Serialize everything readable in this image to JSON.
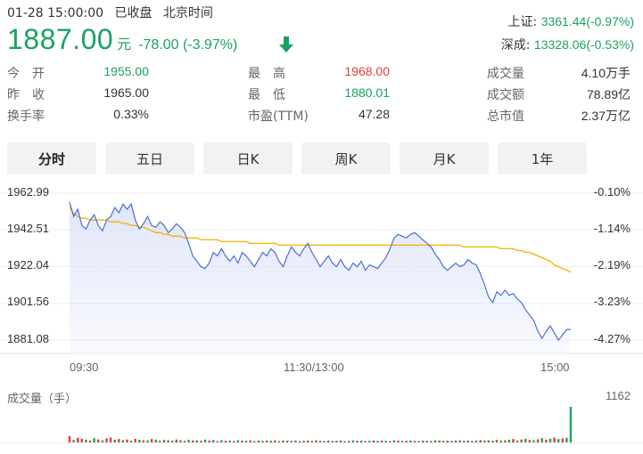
{
  "status": {
    "datetime": "01-28 15:00:00",
    "state": "已收盘",
    "timezone": "北京时间"
  },
  "price": {
    "current": "1887.00",
    "unit": "元",
    "change": "-78.00 (-3.97%)",
    "trend_icon": "down-arrow-icon",
    "color": "#1aa260"
  },
  "indices": [
    {
      "label": "上证:",
      "value": "3361.44(-0.97%)"
    },
    {
      "label": "深成:",
      "value": "13328.06(-0.53%)"
    }
  ],
  "quotes": {
    "open": {
      "label": "今　开",
      "value": "1955.00"
    },
    "prev_close": {
      "label": "昨　收",
      "value": "1965.00"
    },
    "turnover_rate": {
      "label": "换手率",
      "value": "0.33%"
    },
    "high": {
      "label": "最　高",
      "value": "1968.00"
    },
    "low": {
      "label": "最　低",
      "value": "1880.01"
    },
    "pe_ttm": {
      "label": "市盈(TTM)",
      "value": "47.28"
    },
    "volume": {
      "label": "成交量",
      "value": "4.10万手"
    },
    "amount": {
      "label": "成交额",
      "value": "78.89亿"
    },
    "market_cap": {
      "label": "总市值",
      "value": "2.37万亿"
    }
  },
  "tabs": [
    {
      "label": "分时",
      "active": true
    },
    {
      "label": "五日",
      "active": false
    },
    {
      "label": "日K",
      "active": false
    },
    {
      "label": "周K",
      "active": false
    },
    {
      "label": "月K",
      "active": false
    },
    {
      "label": "1年",
      "active": false
    }
  ],
  "chart_data": {
    "type": "line",
    "y_left_ticks": [
      "1962.99",
      "1942.51",
      "1922.04",
      "1901.56",
      "1881.08"
    ],
    "y_right_ticks": [
      "-0.10%",
      "-1.14%",
      "-2.19%",
      "-3.23%",
      "-4.27%"
    ],
    "x_ticks": [
      "09:30",
      "11:30/13:00",
      "15:00"
    ],
    "ylim": [
      1881.08,
      1962.99
    ],
    "colors": {
      "price": "#4a6fd8",
      "avg": "#f0b400",
      "fill": "#dfe4f8",
      "up": "#e33c3c",
      "down": "#1aa260"
    },
    "series": [
      {
        "values": [
          1958,
          1950,
          1954,
          1945,
          1943,
          1948,
          1951,
          1945,
          1942,
          1948,
          1950,
          1955,
          1952,
          1957,
          1954,
          1957,
          1948,
          1943,
          1946,
          1950,
          1945,
          1944,
          1947,
          1945,
          1941,
          1943,
          1946,
          1944,
          1941,
          1935,
          1928,
          1925,
          1922,
          1921,
          1924,
          1930,
          1928,
          1932,
          1928,
          1925,
          1928,
          1924,
          1930,
          1928,
          1925,
          1922,
          1926,
          1930,
          1928,
          1932,
          1930,
          1925,
          1922,
          1928,
          1933,
          1930,
          1928,
          1932,
          1935,
          1930,
          1926,
          1922,
          1925,
          1928,
          1924,
          1922,
          1926,
          1922,
          1920,
          1924,
          1922,
          1925,
          1920,
          1923,
          1922,
          1921,
          1924,
          1927,
          1932,
          1938,
          1940,
          1939,
          1938,
          1940,
          1941,
          1939,
          1937,
          1935,
          1933,
          1929,
          1926,
          1922,
          1920,
          1922,
          1924,
          1922,
          1923,
          1926,
          1924,
          1923,
          1918,
          1912,
          1905,
          1902,
          1908,
          1906,
          1909,
          1906,
          1907,
          1904,
          1902,
          1898,
          1895,
          1892,
          1886,
          1882,
          1886,
          1889,
          1885,
          1881,
          1884,
          1887,
          1887
        ]
      },
      {
        "values": [
          1955,
          1952,
          1950,
          1949,
          1949,
          1948,
          1948,
          1948,
          1948,
          1948,
          1947,
          1947,
          1947,
          1946,
          1946,
          1945,
          1945,
          1944,
          1944,
          1943,
          1942,
          1941,
          1941,
          1940,
          1940,
          1939,
          1939,
          1939,
          1938,
          1938,
          1938,
          1938,
          1937,
          1937,
          1937,
          1937,
          1937,
          1936,
          1936,
          1936,
          1936,
          1936,
          1936,
          1936,
          1935,
          1935,
          1935,
          1935,
          1935,
          1935,
          1935,
          1934,
          1934,
          1934,
          1934,
          1934,
          1934,
          1934,
          1934,
          1934,
          1934,
          1934,
          1934,
          1934,
          1934,
          1934,
          1934,
          1934,
          1934,
          1934,
          1934,
          1934,
          1934,
          1934,
          1934,
          1934,
          1934,
          1934,
          1934,
          1934,
          1934,
          1934,
          1934,
          1934,
          1934,
          1934,
          1934,
          1934,
          1934,
          1934,
          1934,
          1934,
          1934,
          1934,
          1934,
          1934,
          1933,
          1933,
          1933,
          1933,
          1933,
          1933,
          1933,
          1933,
          1933,
          1932,
          1932,
          1932,
          1932,
          1931,
          1931,
          1930,
          1930,
          1929,
          1928,
          1927,
          1926,
          1925,
          1923,
          1922,
          1921,
          1920,
          1919
        ]
      }
    ],
    "volume": {
      "title": "成交量（手）",
      "max_label": "1162",
      "max": 1162,
      "values": [
        210,
        80,
        150,
        120,
        90,
        60,
        140,
        100,
        70,
        130,
        160,
        90,
        110,
        75,
        95,
        60,
        120,
        85,
        70,
        65,
        110,
        90,
        55,
        80,
        70,
        60,
        95,
        75,
        50,
        85,
        65,
        70,
        55,
        90,
        60,
        80,
        45,
        70,
        55,
        65,
        50,
        75,
        60,
        55,
        70,
        45,
        60,
        50,
        65,
        55,
        70,
        45,
        60,
        55,
        50,
        65,
        45,
        55,
        60,
        50,
        70,
        55,
        45,
        60,
        50,
        55,
        65,
        45,
        50,
        70,
        55,
        60,
        45,
        55,
        65,
        50,
        60,
        55,
        45,
        70,
        60,
        50,
        55,
        65,
        50,
        45,
        60,
        55,
        50,
        70,
        65,
        55,
        60,
        50,
        65,
        70,
        55,
        60,
        50,
        65,
        75,
        60,
        70,
        55,
        80,
        65,
        70,
        90,
        110,
        60,
        95,
        120,
        80,
        70,
        100,
        140,
        90,
        120,
        160,
        110,
        130,
        150,
        1162
      ],
      "colors": [
        "up",
        "down",
        "up",
        "up",
        "down",
        "up",
        "down",
        "up",
        "down",
        "up",
        "up",
        "down",
        "up",
        "down",
        "up",
        "down",
        "up",
        "down",
        "up",
        "down",
        "up",
        "down",
        "up",
        "down",
        "up",
        "down",
        "up",
        "down",
        "up",
        "down",
        "up",
        "down",
        "up",
        "down",
        "up",
        "down",
        "up",
        "down",
        "up",
        "down",
        "up",
        "down",
        "up",
        "down",
        "up",
        "down",
        "up",
        "down",
        "up",
        "down",
        "up",
        "down",
        "up",
        "down",
        "up",
        "down",
        "up",
        "down",
        "up",
        "down",
        "up",
        "down",
        "up",
        "down",
        "up",
        "down",
        "up",
        "down",
        "up",
        "down",
        "up",
        "down",
        "up",
        "down",
        "up",
        "down",
        "up",
        "down",
        "up",
        "down",
        "up",
        "down",
        "up",
        "down",
        "up",
        "down",
        "up",
        "down",
        "up",
        "down",
        "up",
        "down",
        "up",
        "down",
        "up",
        "down",
        "up",
        "down",
        "up",
        "down",
        "up",
        "down",
        "up",
        "down",
        "up",
        "down",
        "up",
        "down",
        "up",
        "down",
        "up",
        "down",
        "up",
        "down",
        "up",
        "down",
        "up",
        "down",
        "up",
        "down",
        "up",
        "down",
        "down"
      ]
    }
  }
}
